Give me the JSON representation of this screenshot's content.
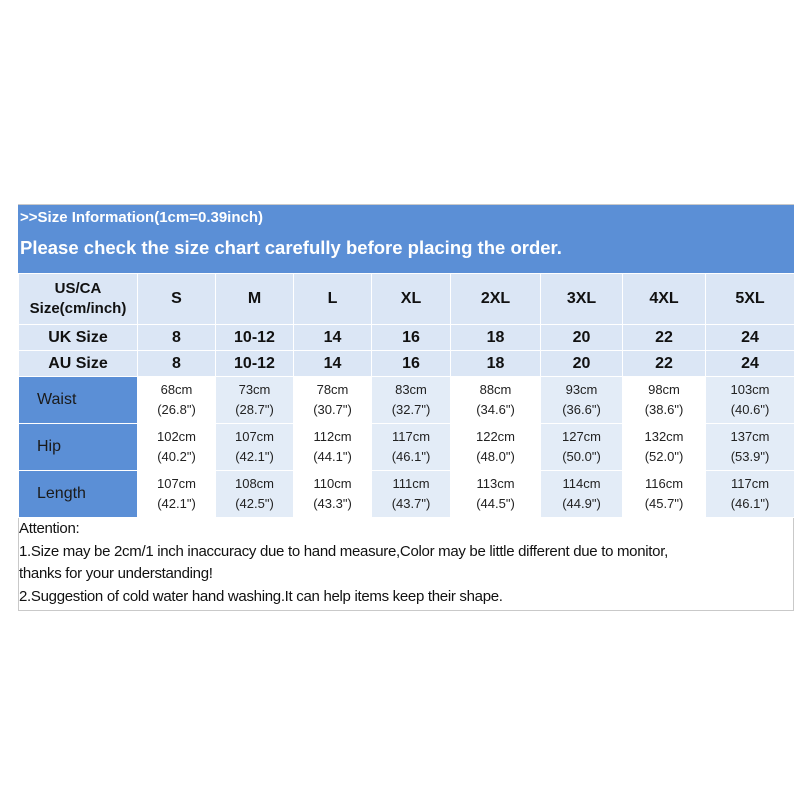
{
  "header": {
    "size_info": ">>Size Information(1cm=0.39inch)",
    "notice": "Please check the size chart carefully before placing the order."
  },
  "rows": {
    "us_ca": {
      "label_line1": "US/CA",
      "label_line2": "Size(cm/inch)",
      "values": [
        "S",
        "M",
        "L",
        "XL",
        "2XL",
        "3XL",
        "4XL",
        "5XL"
      ]
    },
    "uk": {
      "label": "UK Size",
      "values": [
        "8",
        "10-12",
        "14",
        "16",
        "18",
        "20",
        "22",
        "24"
      ]
    },
    "au": {
      "label": "AU Size",
      "values": [
        "8",
        "10-12",
        "14",
        "16",
        "18",
        "20",
        "22",
        "24"
      ]
    },
    "waist": {
      "label": "Waist",
      "cm": [
        "68cm",
        "73cm",
        "78cm",
        "83cm",
        "88cm",
        "93cm",
        "98cm",
        "103cm"
      ],
      "inch": [
        "(26.8\")",
        "(28.7\")",
        "(30.7\")",
        "(32.7\")",
        "(34.6\")",
        "(36.6\")",
        "(38.6\")",
        "(40.6\")"
      ]
    },
    "hip": {
      "label": "Hip",
      "cm": [
        "102cm",
        "107cm",
        "112cm",
        "117cm",
        "122cm",
        "127cm",
        "132cm",
        "137cm"
      ],
      "inch": [
        "(40.2\")",
        "(42.1\")",
        "(44.1\")",
        "(46.1\")",
        "(48.0\")",
        "(50.0\")",
        "(52.0\")",
        "(53.9\")"
      ]
    },
    "length": {
      "label": "Length",
      "cm": [
        "107cm",
        "108cm",
        "110cm",
        "111cm",
        "113cm",
        "114cm",
        "116cm",
        "117cm"
      ],
      "inch": [
        "(42.1\")",
        "(42.5\")",
        "(43.3\")",
        "(43.7\")",
        "(44.5\")",
        "(44.9\")",
        "(45.7\")",
        "(46.1\")"
      ]
    }
  },
  "notes": {
    "attention": "Attention:",
    "line1": "1.Size may be 2cm/1 inch inaccuracy due to hand measure,Color may be little different due to monitor,",
    "line2": "thanks for your understanding!",
    "line3": "2.Suggestion of cold water hand washing.It can help items keep their shape."
  },
  "colors": {
    "header_blue": "#5b8fd6",
    "light_blue": "#dbe6f5",
    "stripe_blue": "#e3ecf7"
  }
}
